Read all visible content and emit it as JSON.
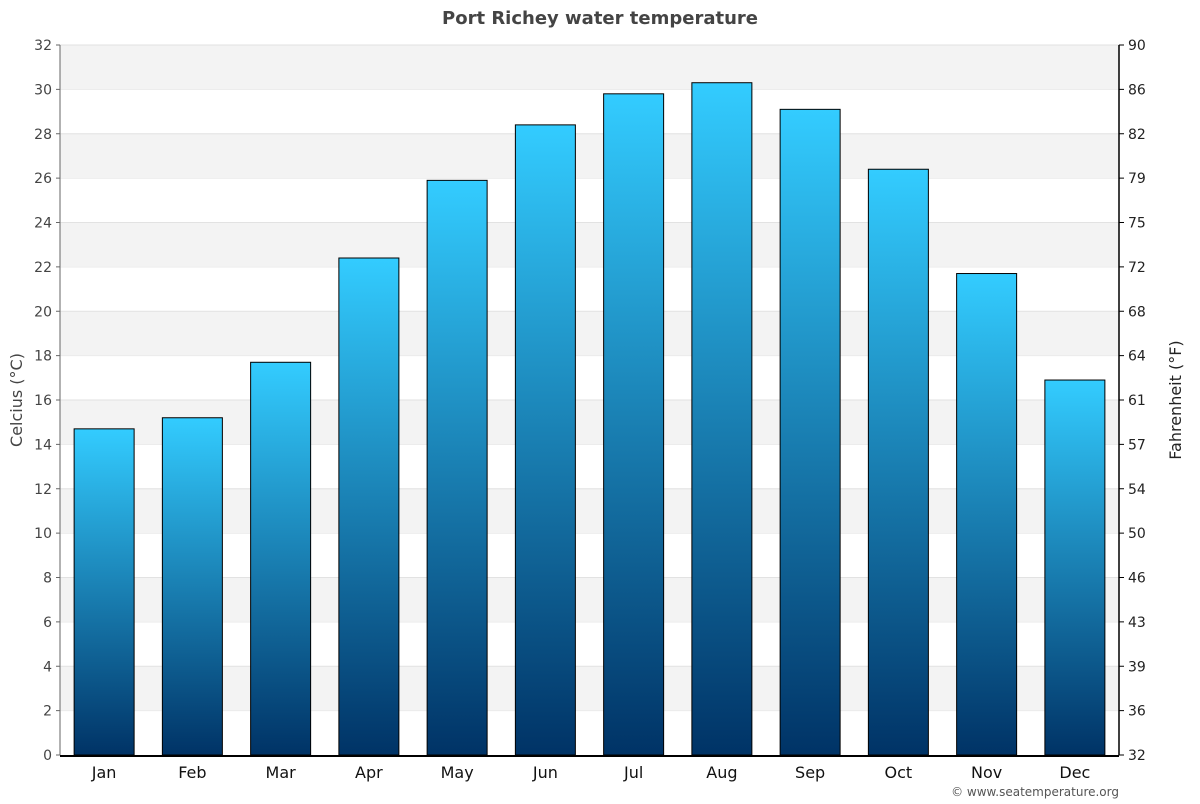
{
  "chart_data": {
    "type": "bar",
    "title": "Port Richey water temperature",
    "categories": [
      "Jan",
      "Feb",
      "Mar",
      "Apr",
      "May",
      "Jun",
      "Jul",
      "Aug",
      "Sep",
      "Oct",
      "Nov",
      "Dec"
    ],
    "values": [
      14.7,
      15.2,
      17.7,
      22.4,
      25.9,
      28.4,
      29.8,
      30.3,
      29.1,
      26.4,
      21.7,
      16.9
    ],
    "ylabel": "Celcius (°C)",
    "y2label": "Fahrenheit (°F)",
    "ylim": [
      0,
      32
    ],
    "yticks": [
      "0",
      "2",
      "4",
      "6",
      "8",
      "10",
      "12",
      "14",
      "16",
      "18",
      "20",
      "22",
      "24",
      "26",
      "28",
      "30",
      "32"
    ],
    "y2ticks": [
      "32",
      "36",
      "39",
      "43",
      "46",
      "50",
      "54",
      "57",
      "61",
      "64",
      "68",
      "72",
      "75",
      "79",
      "82",
      "86",
      "90"
    ],
    "grid": true,
    "legend": "none",
    "colors": {
      "bar_top": "#33ccff",
      "bar_bottom": "#003366",
      "band": "#f3f3f3"
    }
  },
  "footer": {
    "credit": "© www.seatemperature.org"
  }
}
